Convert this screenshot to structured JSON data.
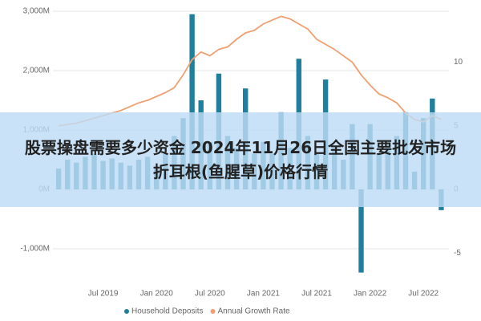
{
  "chart_data": {
    "type": "bar-line",
    "x": [
      "Feb 2019",
      "Mar 2019",
      "Apr 2019",
      "May 2019",
      "Jun 2019",
      "Jul 2019",
      "Aug 2019",
      "Sep 2019",
      "Oct 2019",
      "Nov 2019",
      "Dec 2019",
      "Jan 2020",
      "Feb 2020",
      "Mar 2020",
      "Apr 2020",
      "May 2020",
      "Jun 2020",
      "Jul 2020",
      "Aug 2020",
      "Sep 2020",
      "Oct 2020",
      "Nov 2020",
      "Dec 2020",
      "Jan 2021",
      "Feb 2021",
      "Mar 2021",
      "Apr 2021",
      "May 2021",
      "Jun 2021",
      "Jul 2021",
      "Aug 2021",
      "Sep 2021",
      "Oct 2021",
      "Nov 2021",
      "Dec 2021",
      "Jan 2022",
      "Feb 2022",
      "Mar 2022",
      "Apr 2022",
      "May 2022",
      "Jun 2022",
      "Jul 2022",
      "Aug 2022",
      "Sep 2022"
    ],
    "xticks": [
      "Jul 2019",
      "Jan 2020",
      "Jul 2020",
      "Jan 2021",
      "Jul 2021",
      "Jan 2022",
      "Jul 2022"
    ],
    "series": [
      {
        "name": "Household Deposits",
        "type": "bar",
        "color": "#1f7f9c",
        "values": [
          350,
          500,
          450,
          550,
          600,
          480,
          520,
          450,
          400,
          500,
          550,
          350,
          600,
          900,
          1200,
          2950,
          1500,
          800,
          1950,
          900,
          700,
          1700,
          600,
          800,
          600,
          1300,
          700,
          2200,
          900,
          600,
          1850,
          700,
          500,
          1100,
          -1400,
          1100,
          600,
          800,
          900,
          1300,
          300,
          1200,
          1530,
          -350
        ]
      },
      {
        "name": "Annual Growth Rate",
        "type": "line",
        "axis": "y2",
        "color": "#f0a070",
        "values": [
          5.0,
          5.1,
          5.2,
          5.4,
          5.6,
          5.8,
          6.0,
          6.2,
          6.5,
          6.8,
          7.0,
          7.3,
          7.6,
          8.0,
          9.0,
          10.2,
          10.8,
          10.5,
          11.0,
          11.2,
          11.8,
          12.3,
          12.5,
          13.0,
          13.3,
          13.6,
          13.4,
          13.0,
          12.6,
          11.8,
          11.4,
          11.0,
          10.5,
          10.0,
          9.0,
          8.2,
          7.5,
          7.2,
          6.8,
          6.0,
          5.5,
          5.3,
          5.8,
          5.5
        ]
      }
    ],
    "ylim": [
      -1500,
      3000
    ],
    "yticks": [
      {
        "value": -1000,
        "label": "-1,000M"
      },
      {
        "value": 0,
        "label": "0M"
      },
      {
        "value": 1000,
        "label": "1,000M"
      },
      {
        "value": 2000,
        "label": "2,000M"
      },
      {
        "value": 3000,
        "label": "3,000M"
      }
    ],
    "y2lim": [
      -7,
      14
    ],
    "y2ticks": [
      -5,
      0,
      5,
      10
    ],
    "grid": true
  },
  "banner_title": "股票操盘需要多少资金 2024年11月26日全国主要批发市场折耳根(鱼腥草)价格行情"
}
